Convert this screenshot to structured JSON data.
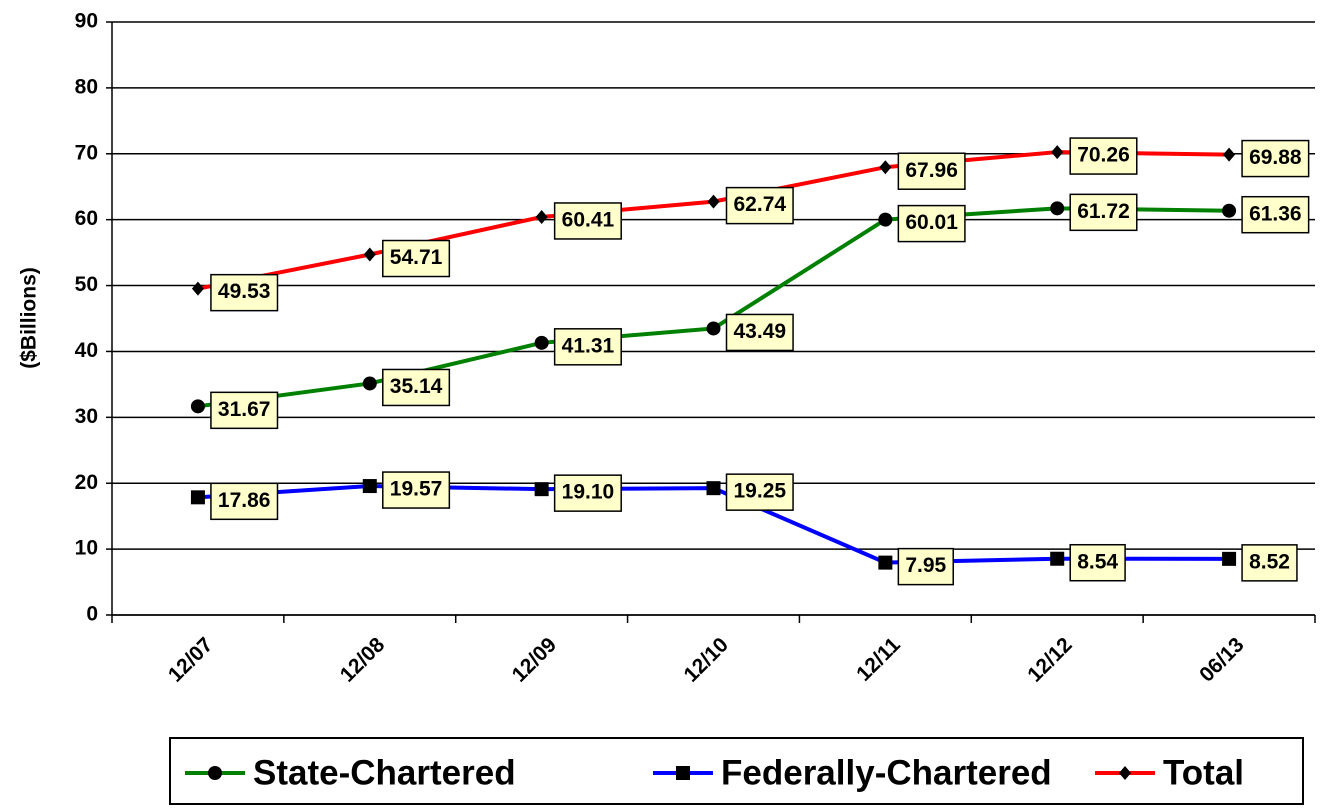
{
  "chart_data": {
    "type": "line",
    "y_label": "($Billions)",
    "categories": [
      "12/07",
      "12/08",
      "12/09",
      "12/10",
      "12/11",
      "12/12",
      "06/13"
    ],
    "series": [
      {
        "name": "State-Chartered",
        "color": "#008000",
        "marker": "circle",
        "values": [
          31.67,
          35.14,
          41.31,
          43.49,
          60.01,
          61.72,
          61.36
        ]
      },
      {
        "name": "Federally-Chartered",
        "color": "#0000ff",
        "marker": "square",
        "values": [
          17.86,
          19.57,
          19.1,
          19.25,
          7.95,
          8.54,
          8.52
        ],
        "value_labels": [
          "17.86",
          "19.57",
          "19.10",
          "19.25",
          "7.95",
          "8.54",
          "8.52"
        ]
      },
      {
        "name": "Total",
        "color": "#ff0000",
        "marker": "diamond",
        "values": [
          49.53,
          54.71,
          60.41,
          62.74,
          67.96,
          70.26,
          69.88
        ]
      }
    ],
    "ylim": [
      0,
      90
    ],
    "yticks": [
      0,
      10,
      20,
      30,
      40,
      50,
      60,
      70,
      80,
      90
    ],
    "grid": true
  }
}
